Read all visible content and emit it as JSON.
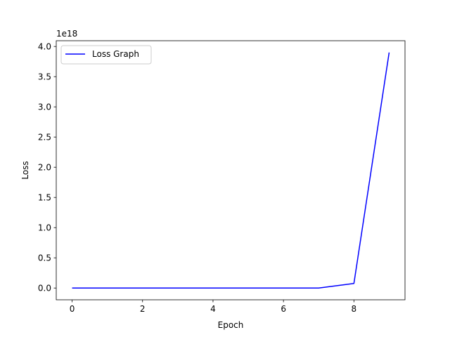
{
  "chart_data": {
    "type": "line",
    "title": "",
    "xlabel": "Epoch",
    "ylabel": "Loss",
    "offset_label": "1e18",
    "x": [
      0,
      1,
      2,
      3,
      4,
      5,
      6,
      7,
      8,
      9
    ],
    "series": [
      {
        "name": "Loss Graph",
        "color": "#0000ff",
        "values": [
          0.0,
          0.0,
          0.0,
          0.0,
          0.0,
          0.0,
          0.0,
          0.0,
          0.075,
          3.9
        ]
      }
    ],
    "xlim": [
      -0.45,
      9.45
    ],
    "ylim": [
      -0.195,
      4.095
    ],
    "xticks": [
      0,
      2,
      4,
      6,
      8
    ],
    "xtick_labels": [
      "0",
      "2",
      "4",
      "6",
      "8"
    ],
    "yticks": [
      0.0,
      0.5,
      1.0,
      1.5,
      2.0,
      2.5,
      3.0,
      3.5,
      4.0
    ],
    "ytick_labels": [
      "0.0",
      "0.5",
      "1.0",
      "1.5",
      "2.0",
      "2.5",
      "3.0",
      "3.5",
      "4.0"
    ],
    "grid": false,
    "legend_position": "upper-left"
  }
}
